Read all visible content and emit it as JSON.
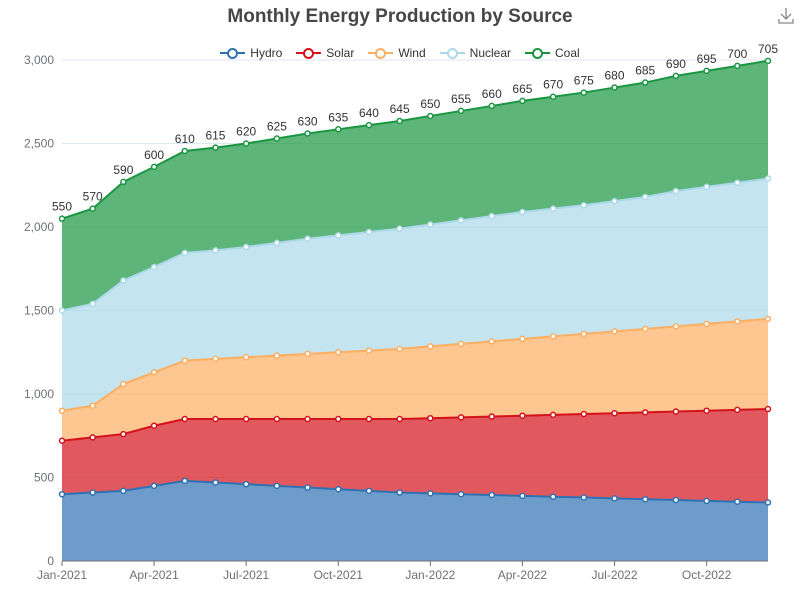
{
  "chart_data": {
    "type": "area",
    "stacked": true,
    "title": "Monthly Energy Production by Source",
    "x": [
      "Jan-2021",
      "Feb-2021",
      "Mar-2021",
      "Apr-2021",
      "May-2021",
      "Jun-2021",
      "Jul-2021",
      "Aug-2021",
      "Sep-2021",
      "Oct-2021",
      "Nov-2021",
      "Dec-2021",
      "Jan-2022",
      "Feb-2022",
      "Mar-2022",
      "Apr-2022",
      "May-2022",
      "Jun-2022",
      "Jul-2022",
      "Aug-2022",
      "Sep-2022",
      "Oct-2022",
      "Nov-2022",
      "Dec-2022"
    ],
    "x_tick_labels": [
      "Jan-2021",
      "Apr-2021",
      "Jul-2021",
      "Oct-2021",
      "Jan-2022",
      "Apr-2022",
      "Jul-2022",
      "Oct-2022"
    ],
    "ylim": [
      0,
      3000
    ],
    "y_ticks": [
      0,
      500,
      1000,
      1500,
      2000,
      2500,
      3000
    ],
    "y_tick_labels": [
      "0",
      "500",
      "1,000",
      "1,500",
      "2,000",
      "2,500",
      "3,000"
    ],
    "grid": true,
    "legend_position": "top-center",
    "series": [
      {
        "name": "Hydro",
        "color": "#2f72b3",
        "values": [
          400,
          410,
          420,
          450,
          480,
          470,
          460,
          450,
          440,
          430,
          420,
          410,
          405,
          400,
          395,
          390,
          385,
          380,
          375,
          370,
          365,
          360,
          355,
          350
        ]
      },
      {
        "name": "Solar",
        "color": "#d4121a",
        "values": [
          320,
          330,
          340,
          360,
          370,
          380,
          390,
          400,
          410,
          420,
          430,
          440,
          450,
          460,
          470,
          480,
          490,
          500,
          510,
          520,
          530,
          540,
          550,
          560
        ]
      },
      {
        "name": "Wind",
        "color": "#fdae61",
        "values": [
          180,
          190,
          300,
          320,
          350,
          360,
          370,
          380,
          390,
          400,
          410,
          420,
          430,
          440,
          450,
          460,
          470,
          480,
          490,
          500,
          510,
          520,
          530,
          540
        ]
      },
      {
        "name": "Nuclear",
        "color": "#abd9e9",
        "values": [
          600,
          610,
          620,
          630,
          645,
          650,
          660,
          675,
          690,
          700,
          710,
          720,
          730,
          740,
          750,
          760,
          765,
          770,
          780,
          790,
          810,
          820,
          830,
          840
        ]
      },
      {
        "name": "Coal",
        "color": "#1a9641",
        "values": [
          550,
          570,
          590,
          600,
          610,
          615,
          620,
          625,
          630,
          635,
          640,
          645,
          650,
          655,
          660,
          665,
          670,
          675,
          680,
          685,
          690,
          695,
          700,
          705
        ]
      }
    ],
    "data_labels_series": "Coal"
  },
  "toolbar": {
    "download_icon": "download-icon"
  }
}
